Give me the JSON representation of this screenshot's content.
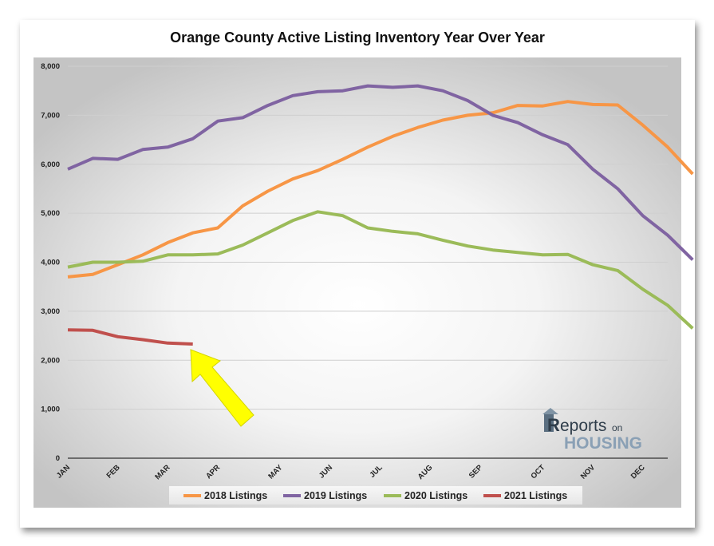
{
  "chart_data": {
    "type": "line",
    "title": "Orange County Active Listing Inventory Year Over Year",
    "ylim": [
      0,
      8000
    ],
    "yticks": [
      "0",
      "1,000",
      "2,000",
      "3,000",
      "4,000",
      "5,000",
      "6,000",
      "7,000",
      "8,000"
    ],
    "xlim": [
      0,
      48
    ],
    "month_ticks": [
      {
        "label": "JAN",
        "x": 0
      },
      {
        "label": "FEB",
        "x": 4
      },
      {
        "label": "MAR",
        "x": 8
      },
      {
        "label": "APR",
        "x": 12
      },
      {
        "label": "MAY",
        "x": 17
      },
      {
        "label": "JUN",
        "x": 21
      },
      {
        "label": "JUL",
        "x": 25
      },
      {
        "label": "AUG",
        "x": 29
      },
      {
        "label": "SEP",
        "x": 33
      },
      {
        "label": "OCT",
        "x": 38
      },
      {
        "label": "NOV",
        "x": 42
      },
      {
        "label": "DEC",
        "x": 46
      }
    ],
    "grid": true,
    "legend_position": "bottom",
    "series": [
      {
        "name": "2018 Listings",
        "color": "#f79646",
        "values": [
          3700,
          3750,
          3950,
          4150,
          4400,
          4600,
          4700,
          5150,
          5450,
          5700,
          5870,
          6100,
          6350,
          6570,
          6750,
          6900,
          7000,
          7050,
          7200,
          7190,
          7280,
          7220,
          7210,
          6800,
          6350,
          5800
        ]
      },
      {
        "name": "2019 Listings",
        "color": "#8064a2",
        "values": [
          5900,
          6120,
          6100,
          6300,
          6350,
          6520,
          6880,
          6950,
          7200,
          7400,
          7480,
          7500,
          7600,
          7570,
          7600,
          7500,
          7300,
          7000,
          6850,
          6600,
          6400,
          5900,
          5500,
          4950,
          4550,
          4050
        ]
      },
      {
        "name": "2020 Listings",
        "color": "#9bbb59",
        "values": [
          3900,
          4000,
          4000,
          4020,
          4150,
          4150,
          4170,
          4350,
          4600,
          4850,
          5030,
          4950,
          4700,
          4630,
          4580,
          4450,
          4330,
          4250,
          4200,
          4150,
          4160,
          3950,
          3830,
          3450,
          3120,
          2650
        ]
      },
      {
        "name": "2021 Listings",
        "color": "#c0504d",
        "values": [
          2620,
          2610,
          2480,
          2420,
          2350,
          2330
        ]
      }
    ],
    "annotation": {
      "type": "arrow",
      "color": "#ffff00",
      "points_to_series": "2021 Listings"
    },
    "logo": {
      "line1_prefix": "R",
      "line1_text": "eports",
      "line1_suffix": "on",
      "line2_text": "HOUSING"
    }
  }
}
